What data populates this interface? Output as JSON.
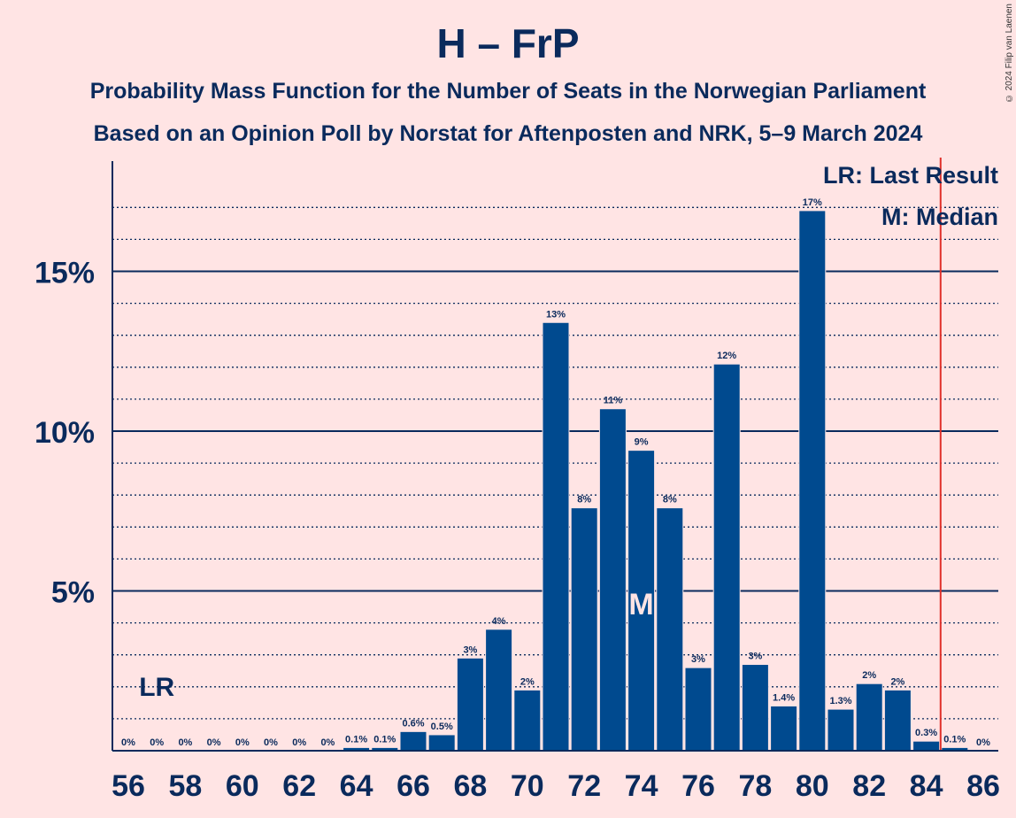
{
  "title": "H – FrP",
  "subtitle_1": "Probability Mass Function for the Number of Seats in the Norwegian Parliament",
  "subtitle_2": "Based on an Opinion Poll by Norstat for Aftenposten and NRK, 5–9 March 2024",
  "copyright": "© 2024 Filip van Laenen",
  "legend": {
    "last_result": "LR: Last Result",
    "median": "M: Median"
  },
  "chart_data": {
    "type": "bar",
    "categories": [
      56,
      57,
      58,
      59,
      60,
      61,
      62,
      63,
      64,
      65,
      66,
      67,
      68,
      69,
      70,
      71,
      72,
      73,
      74,
      75,
      76,
      77,
      78,
      79,
      80,
      81,
      82,
      83,
      84,
      85,
      86
    ],
    "values": [
      0,
      0,
      0,
      0,
      0,
      0,
      0,
      0,
      0.1,
      0.1,
      0.6,
      0.5,
      2.9,
      3.8,
      1.9,
      13.4,
      7.6,
      10.7,
      9.4,
      7.6,
      2.6,
      12.1,
      2.7,
      1.4,
      16.9,
      1.3,
      2.1,
      1.9,
      0.3,
      0.1,
      0
    ],
    "data_labels": [
      "0%",
      "0%",
      "0%",
      "0%",
      "0%",
      "0%",
      "0%",
      "0%",
      "0.1%",
      "0.1%",
      "0.6%",
      "0.5%",
      "3%",
      "4%",
      "2%",
      "13%",
      "8%",
      "11%",
      "9%",
      "8%",
      "3%",
      "12%",
      "3%",
      "1.4%",
      "17%",
      "1.3%",
      "2%",
      "2%",
      "0.3%",
      "0.1%",
      "0%"
    ],
    "x_tick_labels": [
      "56",
      "58",
      "60",
      "62",
      "64",
      "66",
      "68",
      "70",
      "72",
      "74",
      "76",
      "78",
      "80",
      "82",
      "84",
      "86"
    ],
    "y_tick_labels": [
      "5%",
      "10%",
      "15%"
    ],
    "y_ticks": [
      5,
      10,
      15
    ],
    "ylim": [
      0,
      18.5
    ],
    "last_result_seat": 57,
    "last_result_marker": "LR",
    "median_seat": 74,
    "median_marker": "M",
    "majority_line_seat": 85,
    "grid": true,
    "colors": {
      "bar": "#004A8F",
      "bar_edge": "#FFE4E4",
      "axis": "#0A2A5C",
      "majority_line": "#E0302A",
      "background": "#FFE4E4",
      "median_label": "#FFE4E4"
    }
  }
}
